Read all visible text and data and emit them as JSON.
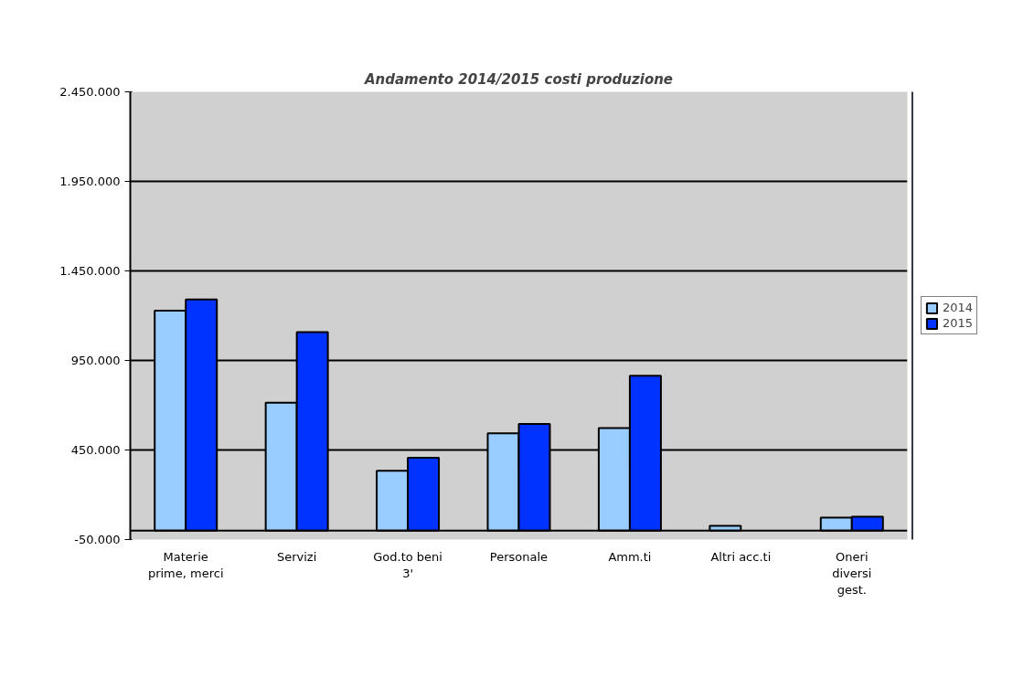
{
  "chart_data": {
    "type": "bar",
    "title": "Andamento 2014/2015 costi produzione",
    "categories": [
      "Materie prime, merci",
      "Servizi",
      "God.to beni 3'",
      "Personale",
      "Amm.ti",
      "Altri acc.ti",
      "Oneri diversi gest."
    ],
    "series": [
      {
        "name": "2014",
        "color": "#99ccff",
        "values": [
          1228000,
          714000,
          334000,
          543000,
          572000,
          26000,
          72000
        ]
      },
      {
        "name": "2015",
        "color": "#0033ff",
        "values": [
          1290000,
          1108000,
          406000,
          595000,
          865000,
          null,
          77000
        ]
      }
    ],
    "ylim": [
      -50000,
      2450000
    ],
    "yticks": [
      {
        "value": -50000,
        "label": "-50.000"
      },
      {
        "value": 450000,
        "label": "450.000"
      },
      {
        "value": 950000,
        "label": "950.000"
      },
      {
        "value": 1450000,
        "label": "1.450.000"
      },
      {
        "value": 1950000,
        "label": "1.950.000"
      },
      {
        "value": 2450000,
        "label": "2.450.000"
      }
    ],
    "grid": "y",
    "legend": "right"
  }
}
